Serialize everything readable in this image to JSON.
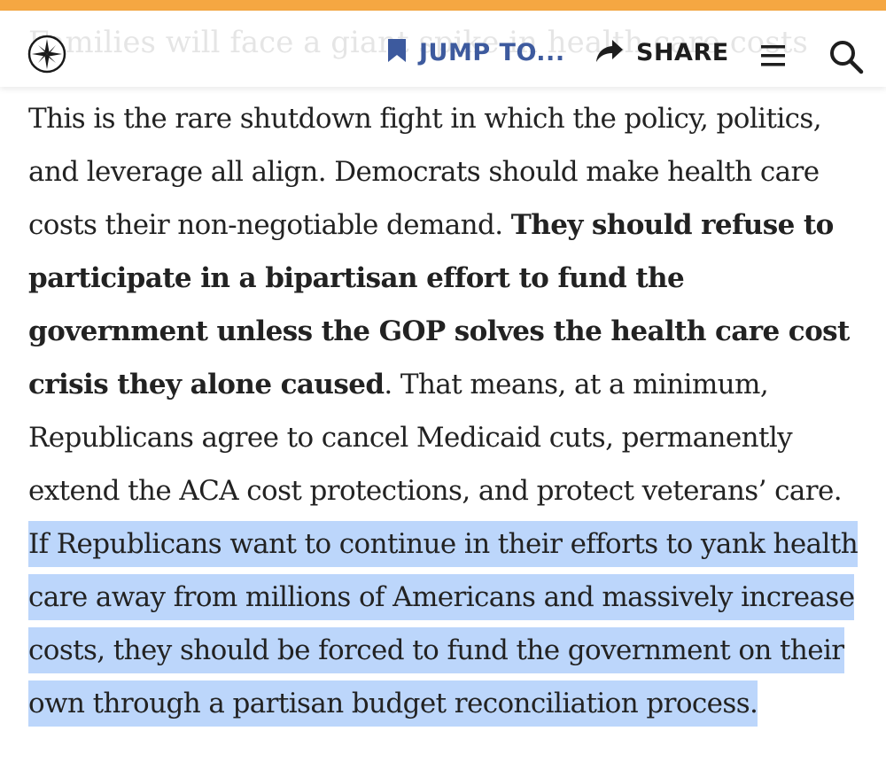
{
  "header": {
    "faded_headline": "Families will face a giant spike in health care costs",
    "jump_label": "JUMP TO...",
    "share_label": "SHARE",
    "icons": {
      "logo": "compass-logo-icon",
      "jump": "bookmark-icon",
      "share": "share-arrow-icon",
      "menu": "hamburger-menu-icon",
      "search": "search-icon"
    }
  },
  "article": {
    "segment_1": "This is the rare shutdown fight in which the policy, politics, and leverage all align. Democrats should make health care costs their non-negotiable demand. ",
    "segment_bold": "They should refuse to participate in a bipartisan effort to fund the government unless the GOP solves the health care cost crisis they alone caused",
    "segment_2": ". That means, at a minimum, Republicans agree to cancel Medicaid cuts, permanently extend the ACA cost protections, and protect veterans’ care. ",
    "segment_highlighted": "If Republicans want to continue in their efforts to yank health care away from millions of Americans and massively increase costs, they should be forced to fund the government on their own through a partisan budget reconciliation process."
  },
  "colors": {
    "accent_bar": "#f5a742",
    "jump_blue": "#3d5a9e",
    "text_highlight": "#bcd6fb",
    "body_text": "#222222"
  }
}
